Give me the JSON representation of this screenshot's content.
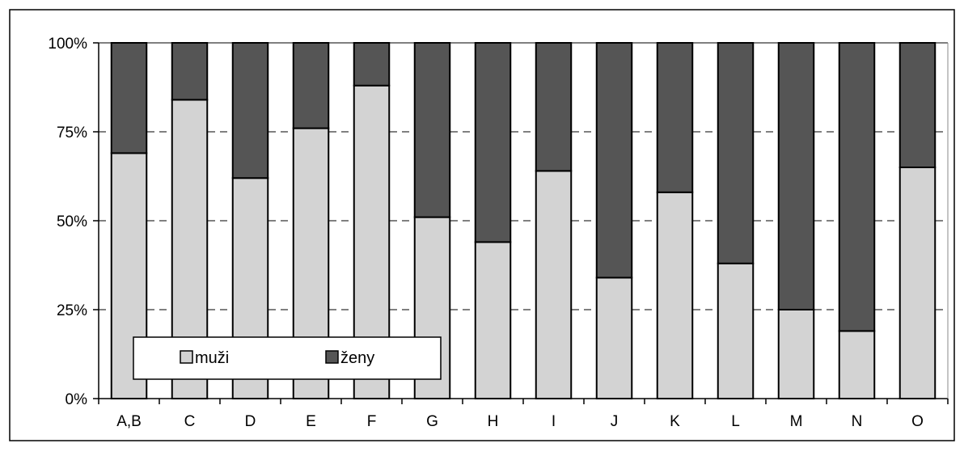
{
  "chart_data": {
    "type": "bar",
    "stacked": true,
    "percent": true,
    "categories": [
      "A,B",
      "C",
      "D",
      "E",
      "F",
      "G",
      "H",
      "I",
      "J",
      "K",
      "L",
      "M",
      "N",
      "O"
    ],
    "series": [
      {
        "name": "muži",
        "color": "#d3d3d3",
        "values": [
          69,
          84,
          62,
          76,
          88,
          51,
          44,
          64,
          34,
          58,
          38,
          25,
          19,
          65
        ]
      },
      {
        "name": "ženy",
        "color": "#555555",
        "values": [
          31,
          16,
          38,
          24,
          12,
          49,
          56,
          36,
          66,
          42,
          62,
          75,
          81,
          35
        ]
      }
    ],
    "ylim": [
      0,
      100
    ],
    "yticks": [
      "0%",
      "25%",
      "50%",
      "75%",
      "100%"
    ],
    "ytick_values": [
      0,
      25,
      50,
      75,
      100
    ],
    "grid": true,
    "legend_position": "bottom-left",
    "title": "",
    "xlabel": "",
    "ylabel": ""
  }
}
